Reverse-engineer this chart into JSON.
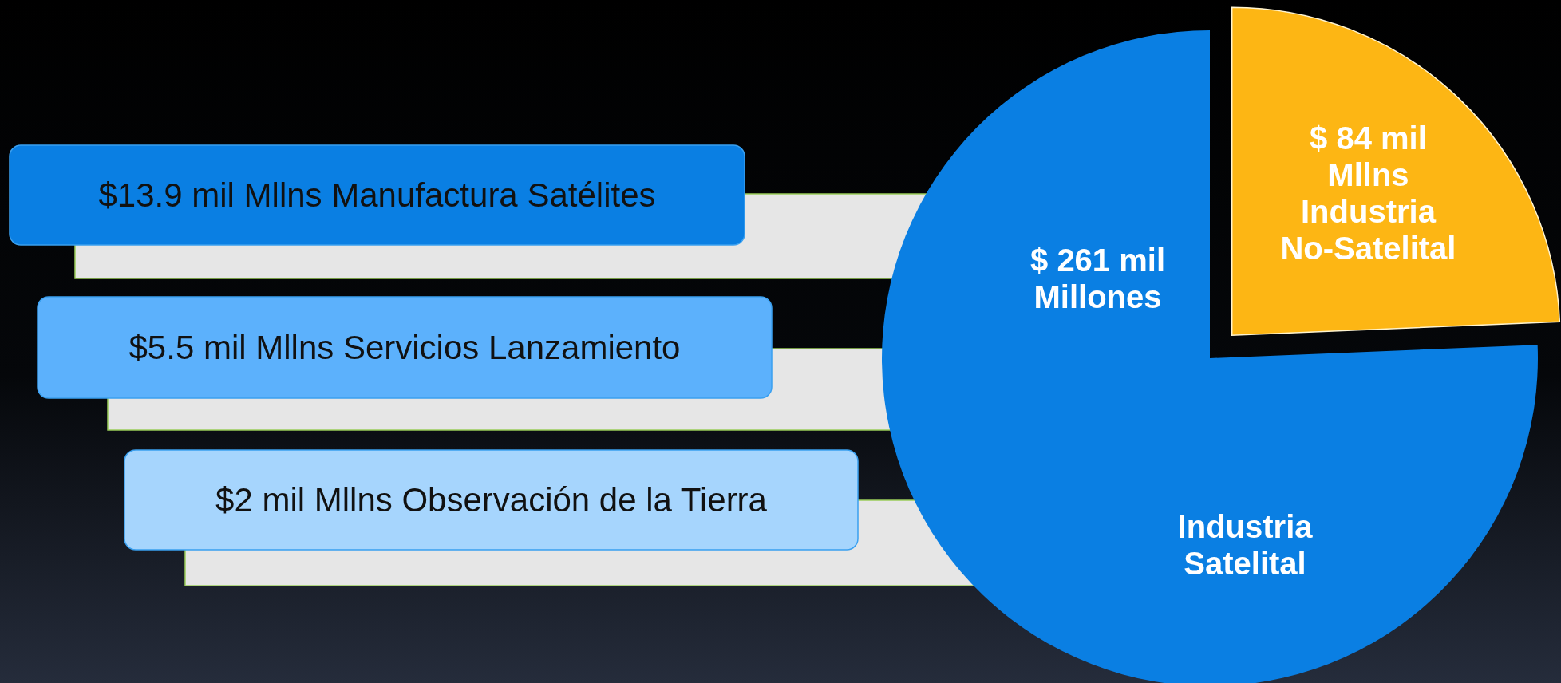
{
  "chart_data": {
    "type": "pie",
    "categories": [
      "Industria Satelital",
      "Industria No-Satelital"
    ],
    "values": [
      261,
      84
    ],
    "colors": [
      "#0a7fe3",
      "#fdb614"
    ],
    "value_labels": [
      "$ 261 mil Millones",
      "$ 84 mil Mllns"
    ],
    "annotations": [
      "$13.9 mil Mllns Manufactura Satélites",
      "$5.5 mil Mllns Servicios Lanzamiento",
      "$2 mil Mllns Observación de la Tierra"
    ]
  }
}
